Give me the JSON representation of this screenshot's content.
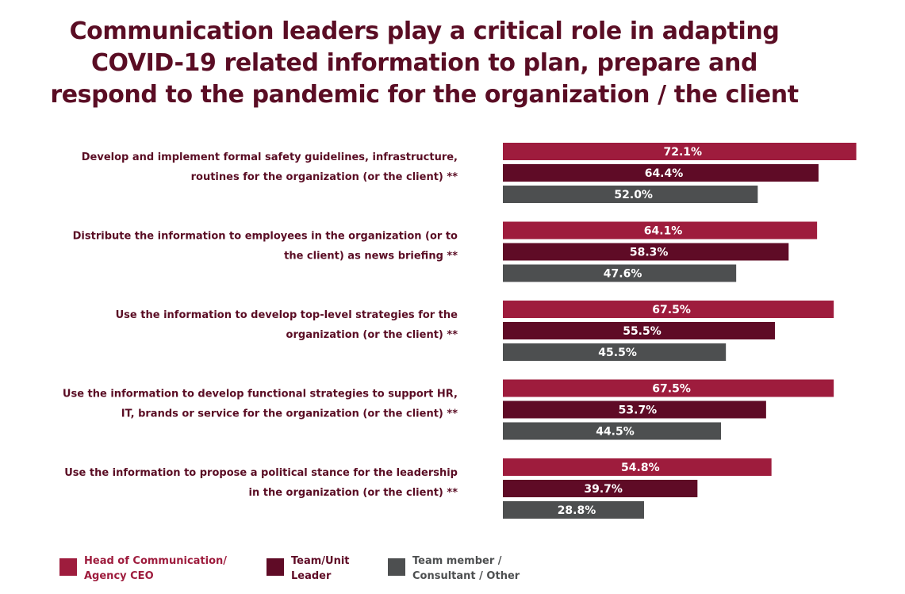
{
  "chart_data": {
    "type": "bar",
    "orientation": "horizontal",
    "title": "Communication leaders play a critical role in adapting COVID-19 related information to plan, prepare and respond to the pandemic for the organization / the client",
    "title_lines": [
      "Communication leaders play a critical role in adapting",
      "COVID-19 related information to plan, prepare and",
      "respond to the pandemic for the organization / the client"
    ],
    "categories": [
      [
        "Develop and implement formal safety guidelines, infrastructure,",
        "routines for the organization (or the client) **"
      ],
      [
        "Distribute the information to employees in the organization (or to",
        "the client) as news briefing **"
      ],
      [
        "Use the information to develop top-level strategies for the",
        "organization (or the client) **"
      ],
      [
        "Use the information to develop functional strategies to support HR,",
        "IT, brands or service for the organization (or the client) **"
      ],
      [
        "Use the information to propose a political stance for the leadership",
        "in the organization (or the client) **"
      ]
    ],
    "series": [
      {
        "name": "Head of Communication/ Agency CEO",
        "legend_lines": [
          "Head of Communication/",
          "Agency CEO"
        ],
        "color": "#9e1c3d",
        "text_color": "#9e1c3d",
        "values": [
          72.1,
          64.1,
          67.5,
          67.5,
          54.8
        ],
        "labels": [
          "72.1%",
          "64.1%",
          "67.5%",
          "67.5%",
          "54.8%"
        ]
      },
      {
        "name": "Team/Unit Leader",
        "legend_lines": [
          "Team/Unit",
          "Leader"
        ],
        "color": "#5f0b26",
        "text_color": "#5f0b26",
        "values": [
          64.4,
          58.3,
          55.5,
          53.7,
          39.7
        ],
        "labels": [
          "64.4%",
          "58.3%",
          "55.5%",
          "53.7%",
          "39.7%"
        ]
      },
      {
        "name": "Team member / Consultant / Other",
        "legend_lines": [
          "Team member /",
          "Consultant / Other"
        ],
        "color": "#4d4f50",
        "text_color": "#4d4f50",
        "values": [
          52.0,
          47.6,
          45.5,
          44.5,
          28.8
        ],
        "labels": [
          "52.0%",
          "47.6%",
          "45.5%",
          "44.5%",
          "28.8%"
        ]
      }
    ],
    "unit": "%",
    "legend_position": "bottom",
    "grid": false
  }
}
